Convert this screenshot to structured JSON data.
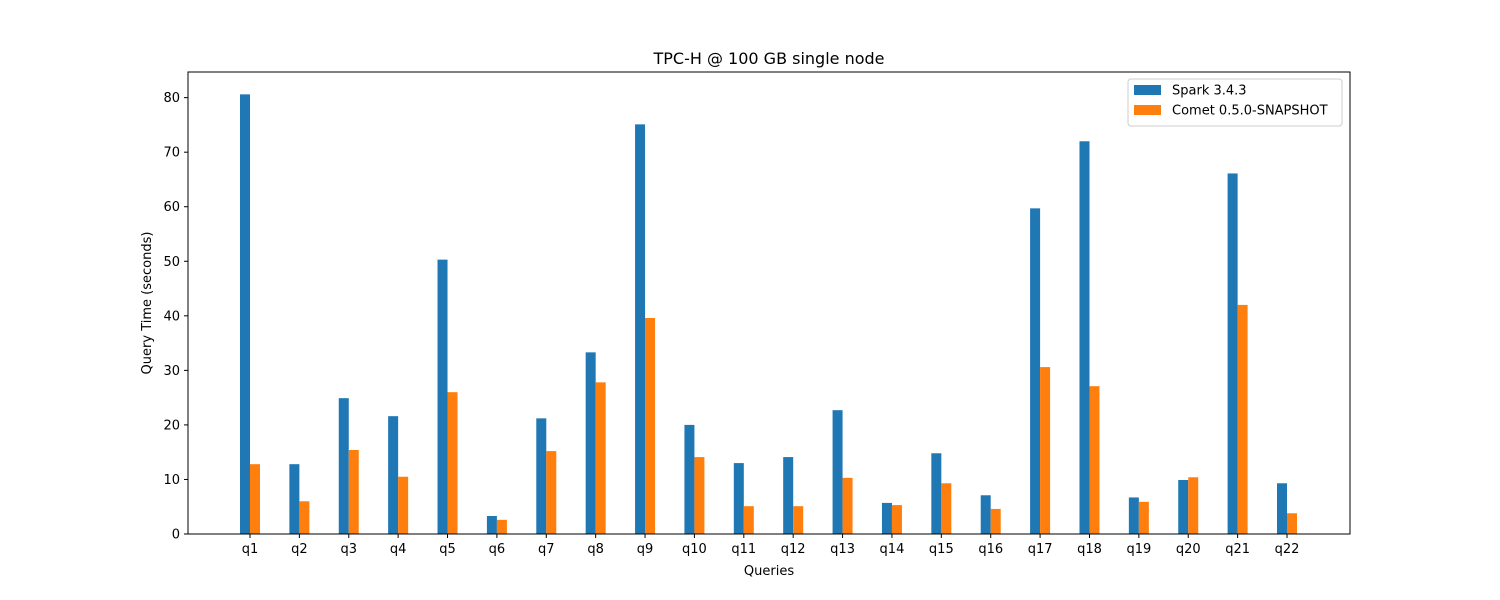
{
  "chart_data": {
    "type": "bar",
    "title": "TPC-H @ 100 GB single node",
    "xlabel": "Queries",
    "ylabel": "Query Time (seconds)",
    "ylim": [
      0,
      84.7
    ],
    "yticks": [
      "0",
      "10",
      "20",
      "30",
      "40",
      "50",
      "60",
      "70",
      "80"
    ],
    "grid": false,
    "legend_position": "top-right",
    "categories": [
      "q1",
      "q2",
      "q3",
      "q4",
      "q5",
      "q6",
      "q7",
      "q8",
      "q9",
      "q10",
      "q11",
      "q12",
      "q13",
      "q14",
      "q15",
      "q16",
      "q17",
      "q18",
      "q19",
      "q20",
      "q21",
      "q22"
    ],
    "series": [
      {
        "name": "Spark 3.4.3",
        "color": "#1f77b4",
        "values": [
          80.6,
          12.8,
          24.9,
          21.6,
          50.3,
          3.3,
          21.2,
          33.3,
          75.1,
          20.0,
          13.0,
          14.1,
          22.7,
          5.7,
          14.8,
          7.1,
          59.7,
          72.0,
          6.7,
          9.9,
          66.1,
          9.3
        ]
      },
      {
        "name": "Comet 0.5.0-SNAPSHOT",
        "color": "#ff7f0e",
        "values": [
          12.8,
          6.0,
          15.4,
          10.5,
          26.0,
          2.6,
          15.2,
          27.8,
          39.6,
          14.1,
          5.1,
          5.1,
          10.3,
          5.3,
          9.3,
          4.6,
          30.6,
          27.1,
          5.9,
          10.4,
          42.0,
          3.8
        ]
      }
    ]
  }
}
